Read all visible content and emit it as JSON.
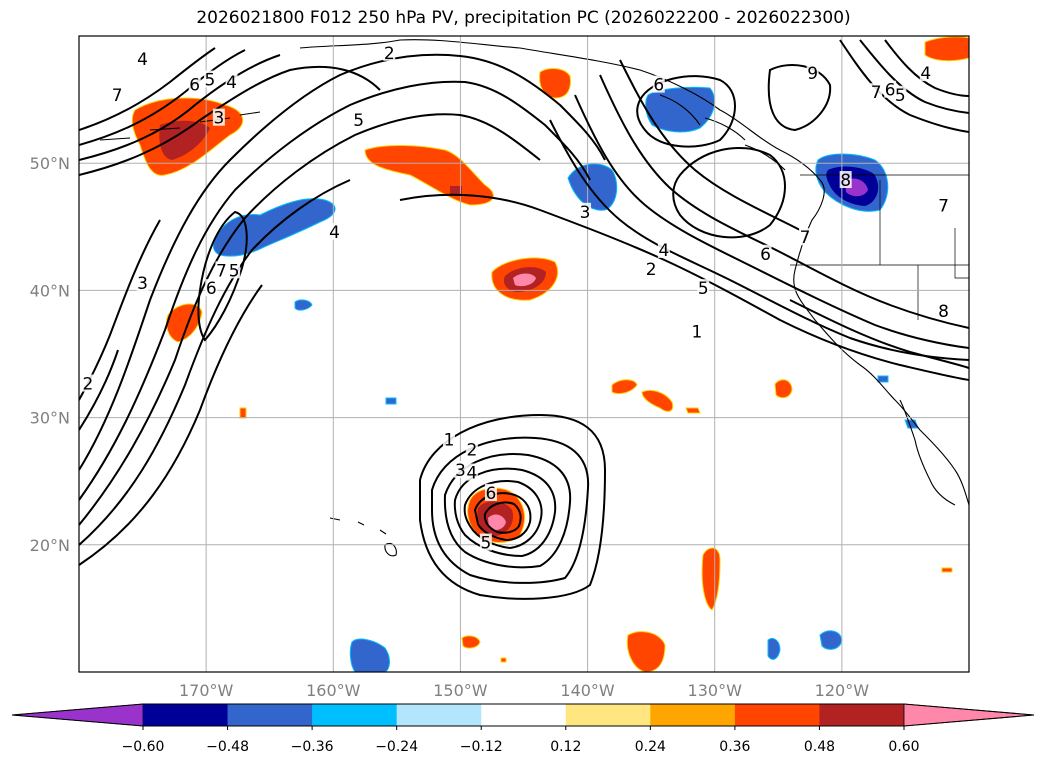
{
  "title": "2026021800 F012 250 hPa PV, precipitation PC (2026022200 - 2026022300)",
  "map": {
    "lat_labels": [
      {
        "lat": 50,
        "text": "50°N"
      },
      {
        "lat": 40,
        "text": "40°N"
      },
      {
        "lat": 30,
        "text": "30°N"
      },
      {
        "lat": 20,
        "text": "20°N"
      }
    ],
    "lon_labels": [
      {
        "lon": -170,
        "text": "170°W"
      },
      {
        "lon": -160,
        "text": "160°W"
      },
      {
        "lon": -150,
        "text": "150°W"
      },
      {
        "lon": -140,
        "text": "140°W"
      },
      {
        "lon": -130,
        "text": "130°W"
      },
      {
        "lon": -120,
        "text": "120°W"
      }
    ],
    "extent": {
      "lon_min": -180,
      "lon_max": -110,
      "lat_min": 10,
      "lat_max": 60
    },
    "grid": true
  },
  "colorbar": {
    "levels": [
      "−0.60",
      "−0.48",
      "−0.36",
      "−0.24",
      "−0.12",
      "0.12",
      "0.24",
      "0.36",
      "0.48",
      "0.60"
    ],
    "colors": [
      "#9933cc",
      "#000099",
      "#3366cc",
      "#00bfff",
      "#b3e5fc",
      "#ffffff",
      "#ffe680",
      "#ffa500",
      "#ff4500",
      "#b22222",
      "#ff88aa"
    ],
    "extend": "both"
  },
  "pv_labels": [
    {
      "text": "7",
      "lon": -177.0,
      "lat": 55.3
    },
    {
      "text": "6",
      "lon": -170.9,
      "lat": 56.1
    },
    {
      "text": "5",
      "lon": -169.7,
      "lat": 56.5
    },
    {
      "text": "4",
      "lon": -168.0,
      "lat": 56.3
    },
    {
      "text": "3",
      "lon": -169.0,
      "lat": 53.5
    },
    {
      "text": "2",
      "lon": -155.6,
      "lat": 58.6
    },
    {
      "text": "5",
      "lon": -158.0,
      "lat": 53.3
    },
    {
      "text": "6",
      "lon": -134.4,
      "lat": 56.1
    },
    {
      "text": "4",
      "lon": -175.0,
      "lat": 58.1
    },
    {
      "text": "4",
      "lon": -159.9,
      "lat": 44.5
    },
    {
      "text": "3",
      "lon": -140.2,
      "lat": 46.1
    },
    {
      "text": "4",
      "lon": -134.0,
      "lat": 43.1
    },
    {
      "text": "2",
      "lon": -135.0,
      "lat": 41.6
    },
    {
      "text": "5",
      "lon": -130.9,
      "lat": 40.1
    },
    {
      "text": "6",
      "lon": -126.0,
      "lat": 42.8
    },
    {
      "text": "1",
      "lon": -131.4,
      "lat": 36.7
    },
    {
      "text": "7",
      "lon": -168.8,
      "lat": 41.5
    },
    {
      "text": "6",
      "lon": -169.6,
      "lat": 40.1
    },
    {
      "text": "5",
      "lon": -167.8,
      "lat": 41.5
    },
    {
      "text": "3",
      "lon": -175.0,
      "lat": 40.5
    },
    {
      "text": "2",
      "lon": -179.3,
      "lat": 32.6
    },
    {
      "text": "9",
      "lon": -122.3,
      "lat": 57.0
    },
    {
      "text": "7",
      "lon": -117.3,
      "lat": 55.5
    },
    {
      "text": "6",
      "lon": -116.2,
      "lat": 55.7
    },
    {
      "text": "5",
      "lon": -115.4,
      "lat": 55.3
    },
    {
      "text": "4",
      "lon": -113.4,
      "lat": 57.0
    },
    {
      "text": "8",
      "lon": -119.7,
      "lat": 48.6
    },
    {
      "text": "7",
      "lon": -122.9,
      "lat": 44.1
    },
    {
      "text": "7",
      "lon": -112.0,
      "lat": 46.6
    },
    {
      "text": "8",
      "lon": -112.0,
      "lat": 38.3
    },
    {
      "text": "1",
      "lon": -150.9,
      "lat": 28.2
    },
    {
      "text": "2",
      "lon": -149.1,
      "lat": 27.4
    },
    {
      "text": "3",
      "lon": -150.0,
      "lat": 25.8
    },
    {
      "text": "4",
      "lon": -149.1,
      "lat": 25.6
    },
    {
      "text": "6",
      "lon": -147.6,
      "lat": 24.0
    },
    {
      "text": "5",
      "lon": -148.0,
      "lat": 20.1
    }
  ]
}
